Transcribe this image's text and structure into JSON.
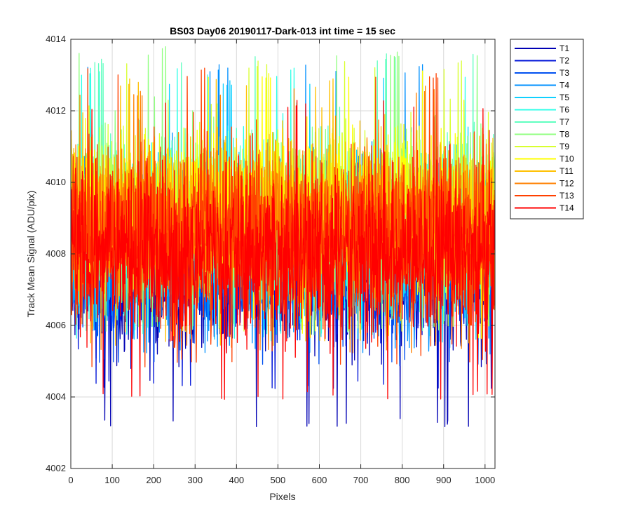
{
  "chart_data": {
    "type": "line",
    "title": "BS03 Day06 20190117-Dark-013 int time = 15 sec",
    "xlabel": "Pixels",
    "ylabel": "Track Mean Signal (ADU/pix)",
    "xlim": [
      0,
      1024
    ],
    "ylim": [
      4002,
      4014
    ],
    "xticks": [
      0,
      100,
      200,
      300,
      400,
      500,
      600,
      700,
      800,
      900,
      1000
    ],
    "yticks": [
      4002,
      4004,
      4006,
      4008,
      4010,
      4012,
      4014
    ],
    "grid": true,
    "legend_position": "outside-top-right",
    "n_points": 1024,
    "series": [
      {
        "name": "T1",
        "color": "#0000b4",
        "mean": 4007.3,
        "min": 4003.1,
        "max": 4009.8
      },
      {
        "name": "T2",
        "color": "#0014d8",
        "mean": 4007.5,
        "min": 4004.2,
        "max": 4010.2
      },
      {
        "name": "T3",
        "color": "#0050f0",
        "mean": 4007.8,
        "min": 4004.8,
        "max": 4010.8
      },
      {
        "name": "T4",
        "color": "#0090ff",
        "mean": 4008.2,
        "min": 4005.2,
        "max": 4013.3
      },
      {
        "name": "T5",
        "color": "#10d0ff",
        "mean": 4008.6,
        "min": 4005.5,
        "max": 4013.0
      },
      {
        "name": "T6",
        "color": "#30ffe8",
        "mean": 4008.8,
        "min": 4005.6,
        "max": 4013.2
      },
      {
        "name": "T7",
        "color": "#60ffc0",
        "mean": 4009.0,
        "min": 4005.7,
        "max": 4013.6
      },
      {
        "name": "T8",
        "color": "#90ff80",
        "mean": 4009.1,
        "min": 4005.8,
        "max": 4013.8
      },
      {
        "name": "T9",
        "color": "#d8ff30",
        "mean": 4009.2,
        "min": 4005.8,
        "max": 4013.4
      },
      {
        "name": "T10",
        "color": "#ffff00",
        "mean": 4009.2,
        "min": 4005.6,
        "max": 4013.2
      },
      {
        "name": "T11",
        "color": "#ffc000",
        "mean": 4009.0,
        "min": 4005.4,
        "max": 4012.9
      },
      {
        "name": "T12",
        "color": "#ff8000",
        "mean": 4008.8,
        "min": 4005.2,
        "max": 4012.7
      },
      {
        "name": "T13",
        "color": "#ff4000",
        "mean": 4008.5,
        "min": 4004.8,
        "max": 4013.2
      },
      {
        "name": "T14",
        "color": "#ff0000",
        "mean": 4008.0,
        "min": 4003.9,
        "max": 4012.3
      }
    ]
  }
}
